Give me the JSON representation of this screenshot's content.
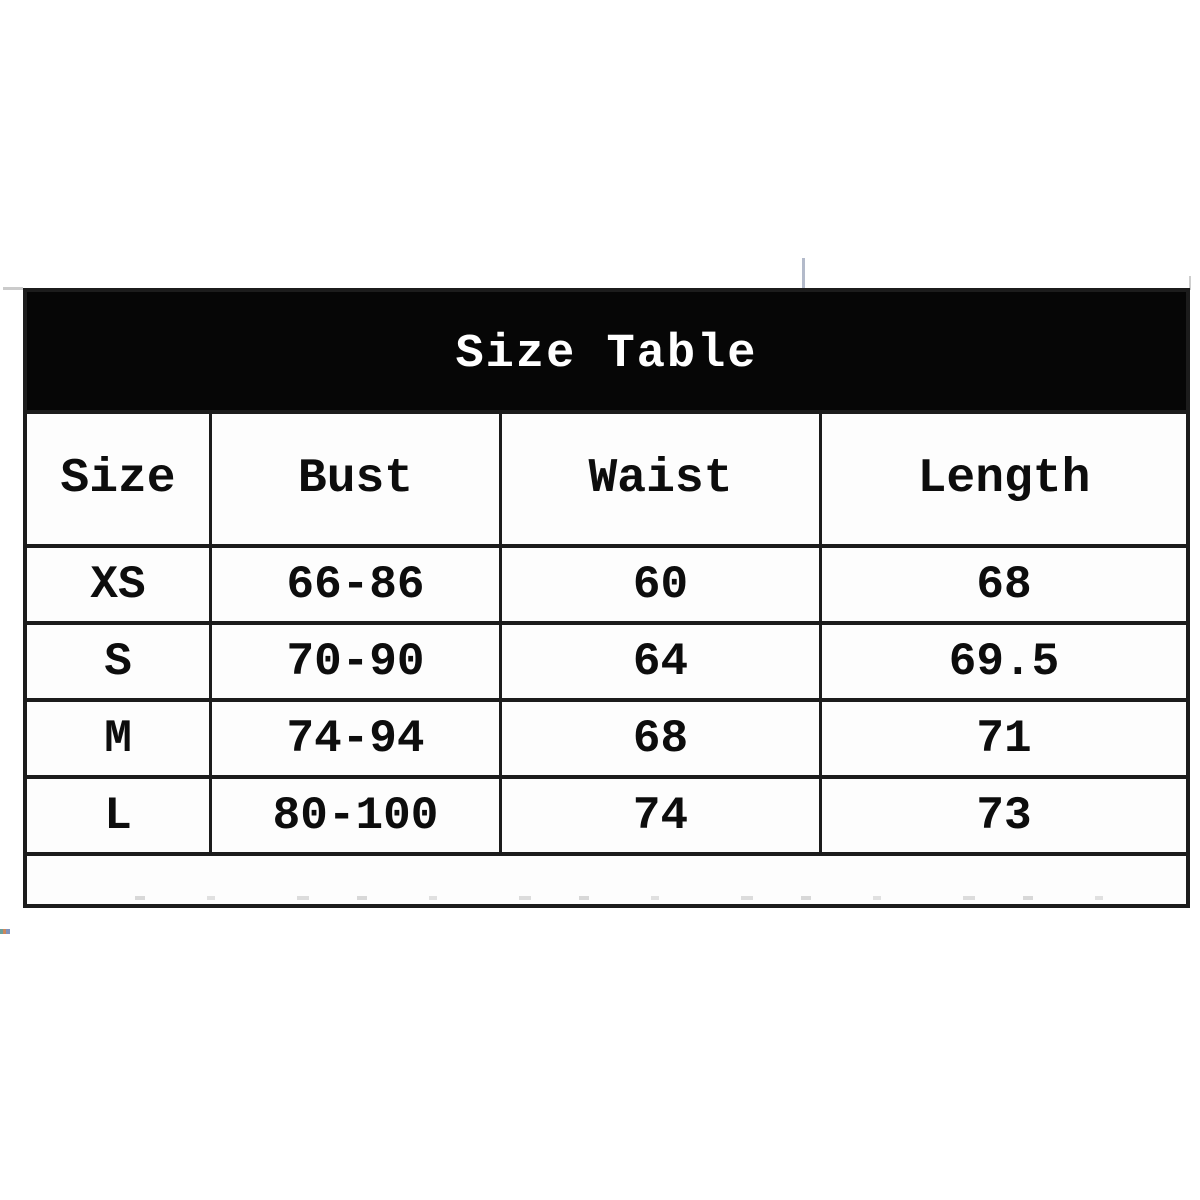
{
  "title": "Size Table",
  "table": {
    "headers": [
      "Size",
      "Bust",
      "Waist",
      "Length"
    ],
    "rows": [
      [
        "XS",
        "66-86",
        "60",
        "68"
      ],
      [
        "S",
        "70-90",
        "64",
        "69.5"
      ],
      [
        "M",
        "74-94",
        "68",
        "71"
      ],
      [
        "L",
        "80-100",
        "74",
        "73"
      ]
    ]
  },
  "colors": {
    "title_bar_bg": "#060606",
    "title_text": "#ffffff",
    "border": "#1c1c1c",
    "cell_text": "#0d0d0d",
    "background": "#ffffff"
  }
}
